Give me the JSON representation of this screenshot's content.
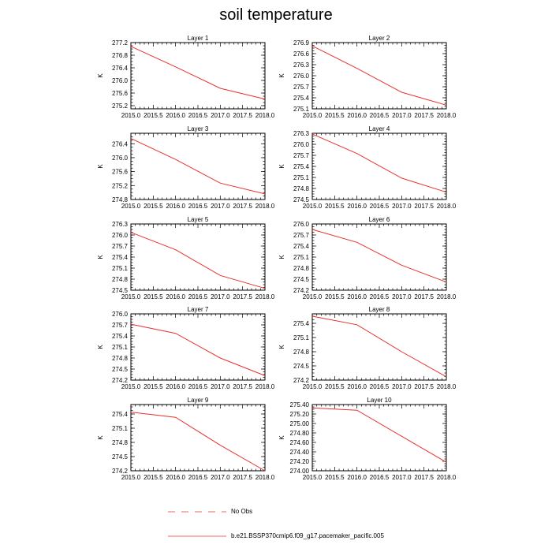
{
  "title": "soil temperature",
  "colors": {
    "model": "#e8322d",
    "obs": "#e8322d",
    "axis": "#000000"
  },
  "legend": [
    {
      "label": "No Obs",
      "style": "dashed"
    },
    {
      "label": "b.e21.BSSP370cmip6.f09_g17.pacemaker_pacific.005",
      "style": "solid"
    }
  ],
  "chart_data": [
    {
      "type": "line",
      "title": "Layer 1",
      "ylabel": "K",
      "xlim": [
        2015.0,
        2018.0
      ],
      "ylim": [
        275.1,
        277.2
      ],
      "xticks": [
        "2015.0",
        "2015.5",
        "2016.0",
        "2016.5",
        "2017.0",
        "2017.5",
        "2018.0"
      ],
      "yticks": [
        "275.2",
        "275.6",
        "276.0",
        "276.4",
        "276.8",
        "277.2"
      ],
      "ytick_values": [
        275.2,
        275.6,
        276.0,
        276.4,
        276.8,
        277.2
      ],
      "series": [
        {
          "name": "b.e21.BSSP370cmip6.f09_g17.pacemaker_pacific.005",
          "x": [
            2015,
            2016,
            2017,
            2018
          ],
          "y": [
            277.08,
            276.43,
            275.75,
            275.41
          ]
        }
      ]
    },
    {
      "type": "line",
      "title": "Layer 2",
      "ylabel": "K",
      "xlim": [
        2015.0,
        2018.0
      ],
      "ylim": [
        275.1,
        276.9
      ],
      "xticks": [
        "2015.0",
        "2015.5",
        "2016.0",
        "2016.5",
        "2017.0",
        "2017.5",
        "2018.0"
      ],
      "yticks": [
        "275.1",
        "275.4",
        "275.7",
        "276.0",
        "276.3",
        "276.6",
        "276.9"
      ],
      "ytick_values": [
        275.1,
        275.4,
        275.7,
        276.0,
        276.3,
        276.6,
        276.9
      ],
      "series": [
        {
          "name": "b.e21.BSSP370cmip6.f09_g17.pacemaker_pacific.005",
          "x": [
            2015,
            2016,
            2017,
            2018
          ],
          "y": [
            276.81,
            276.2,
            275.55,
            275.2
          ]
        }
      ]
    },
    {
      "type": "line",
      "title": "Layer 3",
      "ylabel": "K",
      "xlim": [
        2015.0,
        2018.0
      ],
      "ylim": [
        274.8,
        276.7
      ],
      "xticks": [
        "2015.0",
        "2015.5",
        "2016.0",
        "2016.5",
        "2017.0",
        "2017.5",
        "2018.0"
      ],
      "yticks": [
        "274.8",
        "275.2",
        "275.6",
        "276.0",
        "276.4"
      ],
      "ytick_values": [
        274.8,
        275.2,
        275.6,
        276.0,
        276.4
      ],
      "series": [
        {
          "name": "b.e21.BSSP370cmip6.f09_g17.pacemaker_pacific.005",
          "x": [
            2015,
            2016,
            2017,
            2018
          ],
          "y": [
            276.55,
            275.95,
            275.27,
            274.96
          ]
        }
      ]
    },
    {
      "type": "line",
      "title": "Layer 4",
      "ylabel": "K",
      "xlim": [
        2015.0,
        2018.0
      ],
      "ylim": [
        274.5,
        276.3
      ],
      "xticks": [
        "2015.0",
        "2015.5",
        "2016.0",
        "2016.5",
        "2017.0",
        "2017.5",
        "2018.0"
      ],
      "yticks": [
        "274.5",
        "274.8",
        "275.1",
        "275.4",
        "275.7",
        "276.0",
        "276.3"
      ],
      "ytick_values": [
        274.5,
        274.8,
        275.1,
        275.4,
        275.7,
        276.0,
        276.3
      ],
      "series": [
        {
          "name": "b.e21.BSSP370cmip6.f09_g17.pacemaker_pacific.005",
          "x": [
            2015,
            2016,
            2017,
            2018
          ],
          "y": [
            276.28,
            275.75,
            275.08,
            274.7
          ]
        }
      ]
    },
    {
      "type": "line",
      "title": "Layer 5",
      "ylabel": "K",
      "xlim": [
        2015.0,
        2018.0
      ],
      "ylim": [
        274.5,
        276.3
      ],
      "xticks": [
        "2015.0",
        "2015.5",
        "2016.0",
        "2016.5",
        "2017.0",
        "2017.5",
        "2018.0"
      ],
      "yticks": [
        "274.5",
        "274.8",
        "275.1",
        "275.4",
        "275.7",
        "276.0",
        "276.3"
      ],
      "ytick_values": [
        274.5,
        274.8,
        275.1,
        275.4,
        275.7,
        276.0,
        276.3
      ],
      "series": [
        {
          "name": "b.e21.BSSP370cmip6.f09_g17.pacemaker_pacific.005",
          "x": [
            2015,
            2016,
            2017,
            2018
          ],
          "y": [
            276.07,
            275.6,
            274.9,
            274.55
          ]
        }
      ]
    },
    {
      "type": "line",
      "title": "Layer 6",
      "ylabel": "K",
      "xlim": [
        2015.0,
        2018.0
      ],
      "ylim": [
        274.2,
        276.0
      ],
      "xticks": [
        "2015.0",
        "2015.5",
        "2016.0",
        "2016.5",
        "2017.0",
        "2017.5",
        "2018.0"
      ],
      "yticks": [
        "274.2",
        "274.5",
        "274.8",
        "275.1",
        "275.4",
        "275.7",
        "276.0"
      ],
      "ytick_values": [
        274.2,
        274.5,
        274.8,
        275.1,
        275.4,
        275.7,
        276.0
      ],
      "series": [
        {
          "name": "b.e21.BSSP370cmip6.f09_g17.pacemaker_pacific.005",
          "x": [
            2015,
            2016,
            2017,
            2018
          ],
          "y": [
            275.85,
            275.5,
            274.88,
            274.42
          ]
        }
      ]
    },
    {
      "type": "line",
      "title": "Layer 7",
      "ylabel": "K",
      "xlim": [
        2015.0,
        2018.0
      ],
      "ylim": [
        274.2,
        276.0
      ],
      "xticks": [
        "2015.0",
        "2015.5",
        "2016.0",
        "2016.5",
        "2017.0",
        "2017.5",
        "2018.0"
      ],
      "yticks": [
        "274.2",
        "274.5",
        "274.8",
        "275.1",
        "275.4",
        "275.7",
        "276.0"
      ],
      "ytick_values": [
        274.2,
        274.5,
        274.8,
        275.1,
        275.4,
        275.7,
        276.0
      ],
      "series": [
        {
          "name": "b.e21.BSSP370cmip6.f09_g17.pacemaker_pacific.005",
          "x": [
            2015,
            2016,
            2017,
            2018
          ],
          "y": [
            275.72,
            275.47,
            274.8,
            274.32
          ]
        }
      ]
    },
    {
      "type": "line",
      "title": "Layer 8",
      "ylabel": "K",
      "xlim": [
        2015.0,
        2018.0
      ],
      "ylim": [
        274.2,
        275.6
      ],
      "xticks": [
        "2015.0",
        "2015.5",
        "2016.0",
        "2016.5",
        "2017.0",
        "2017.5",
        "2018.0"
      ],
      "yticks": [
        "274.2",
        "274.5",
        "274.8",
        "275.1",
        "275.4"
      ],
      "ytick_values": [
        274.2,
        274.5,
        274.8,
        275.1,
        275.4
      ],
      "series": [
        {
          "name": "b.e21.BSSP370cmip6.f09_g17.pacemaker_pacific.005",
          "x": [
            2015,
            2016,
            2017,
            2018
          ],
          "y": [
            275.55,
            275.37,
            274.8,
            274.27
          ]
        }
      ]
    },
    {
      "type": "line",
      "title": "Layer 9",
      "ylabel": "K",
      "xlim": [
        2015.0,
        2018.0
      ],
      "ylim": [
        274.2,
        275.6
      ],
      "xticks": [
        "2015.0",
        "2015.5",
        "2016.0",
        "2016.5",
        "2017.0",
        "2017.5",
        "2018.0"
      ],
      "yticks": [
        "274.2",
        "274.5",
        "274.8",
        "275.1",
        "275.4"
      ],
      "ytick_values": [
        274.2,
        274.5,
        274.8,
        275.1,
        275.4
      ],
      "series": [
        {
          "name": "b.e21.BSSP370cmip6.f09_g17.pacemaker_pacific.005",
          "x": [
            2015,
            2016,
            2017,
            2018
          ],
          "y": [
            275.44,
            275.33,
            274.74,
            274.2
          ]
        }
      ]
    },
    {
      "type": "line",
      "title": "Layer 10",
      "ylabel": "K",
      "xlim": [
        2015.0,
        2018.0
      ],
      "ylim": [
        274.0,
        275.4
      ],
      "xticks": [
        "2015.0",
        "2015.5",
        "2016.0",
        "2016.5",
        "2017.0",
        "2017.5",
        "2018.0"
      ],
      "yticks": [
        "274.00",
        "274.20",
        "274.40",
        "274.60",
        "274.80",
        "275.00",
        "275.20",
        "275.40"
      ],
      "ytick_values": [
        274.0,
        274.2,
        274.4,
        274.6,
        274.8,
        275.0,
        275.2,
        275.4
      ],
      "series": [
        {
          "name": "b.e21.BSSP370cmip6.f09_g17.pacemaker_pacific.005",
          "x": [
            2015,
            2016,
            2017,
            2018
          ],
          "y": [
            275.33,
            275.28,
            274.73,
            274.18
          ]
        }
      ]
    }
  ]
}
